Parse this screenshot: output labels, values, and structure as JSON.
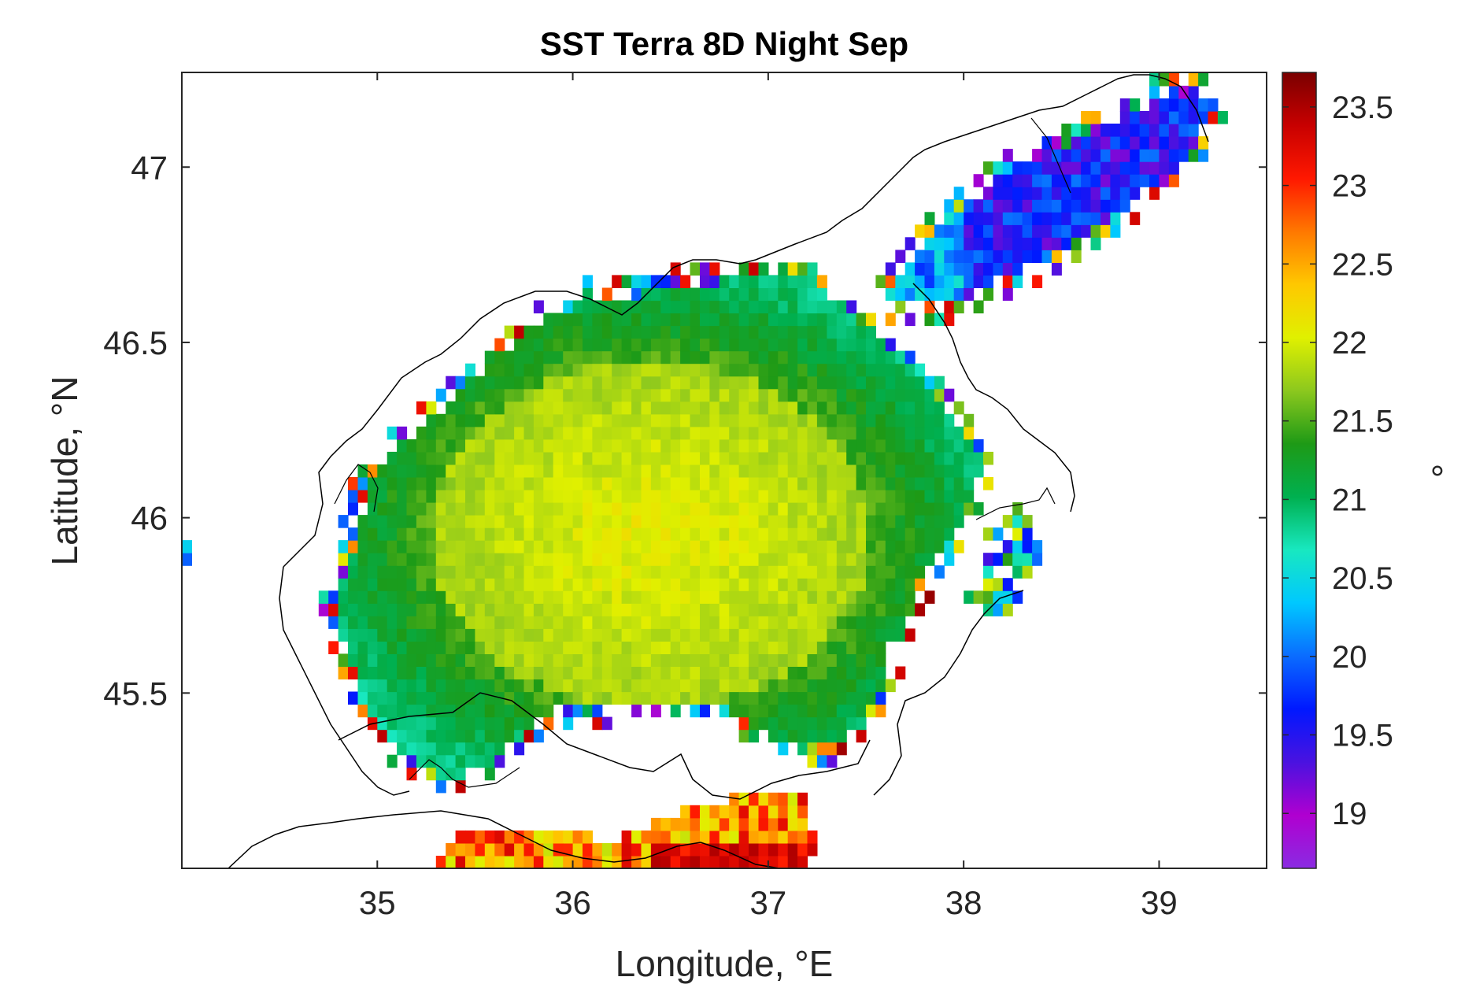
{
  "chart_data": {
    "type": "heatmap",
    "title": "SST Terra 8D Night Sep",
    "xlabel": "Longitude, °E",
    "ylabel": "Latitude, °N",
    "colorbar_label": "°",
    "xlim": [
      34.0,
      39.55
    ],
    "ylim": [
      45.0,
      47.27
    ],
    "xticks": [
      35,
      36,
      37,
      38,
      39
    ],
    "yticks": [
      45.5,
      46,
      46.5,
      47
    ],
    "xtick_labels": [
      "35",
      "36",
      "37",
      "38",
      "39"
    ],
    "ytick_labels": [
      "45.5",
      "46",
      "46.5",
      "47"
    ],
    "clim": [
      18.65,
      23.72
    ],
    "cticks": [
      19,
      19.5,
      20,
      20.5,
      21,
      21.5,
      22,
      22.5,
      23,
      23.5
    ],
    "ctick_labels": [
      "19",
      "19.5",
      "20",
      "20.5",
      "21",
      "21.5",
      "22",
      "22.5",
      "23",
      "23.5"
    ],
    "colormap": [
      "#8a2be2",
      "#b000d0",
      "#4a12e0",
      "#0018ff",
      "#0a6cff",
      "#00c8ff",
      "#18e8c0",
      "#00b050",
      "#1e9a16",
      "#8cc81e",
      "#e0f000",
      "#ffc800",
      "#ff7800",
      "#ff1800",
      "#c80000",
      "#7a0000"
    ],
    "grid": false,
    "main_sea_center_value": 22.1,
    "main_sea_edge_value": 21.5,
    "coastal_band_value": 20.8,
    "north_gulf_value": 19.6,
    "south_shallow_value": 22.6
  }
}
